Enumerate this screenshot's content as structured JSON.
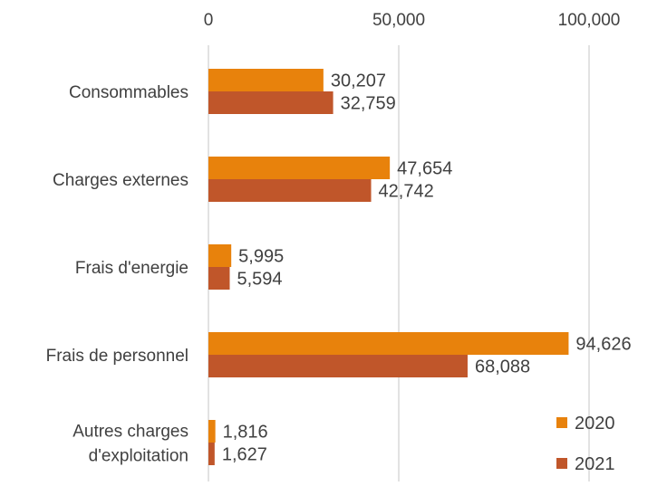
{
  "chart_data": {
    "type": "bar",
    "orientation": "horizontal",
    "categories": [
      [
        "Consommables"
      ],
      [
        "Charges externes"
      ],
      [
        "Frais d'energie"
      ],
      [
        "Frais de personnel"
      ],
      [
        "Autres charges",
        "d'exploitation"
      ]
    ],
    "series": [
      {
        "name": "2020",
        "color": "#E8820C",
        "values": [
          30207,
          47654,
          5995,
          94626,
          1816
        ],
        "labels": [
          "30,207",
          "47,654",
          "5,995",
          "94,626",
          "1,816"
        ]
      },
      {
        "name": "2021",
        "color": "#C0562A",
        "values": [
          32759,
          42742,
          5594,
          68088,
          1627
        ],
        "labels": [
          "32,759",
          "42,742",
          "5,594",
          "68,088",
          "1,627"
        ]
      }
    ],
    "x_axis": {
      "position": "top",
      "ticks": [
        0,
        50000,
        100000
      ],
      "tick_labels": [
        "0",
        "50,000",
        "100,000"
      ],
      "range": [
        0,
        100000
      ]
    },
    "grid": true,
    "legend_position": "bottom-right",
    "title": "",
    "xlabel": "",
    "ylabel": ""
  }
}
